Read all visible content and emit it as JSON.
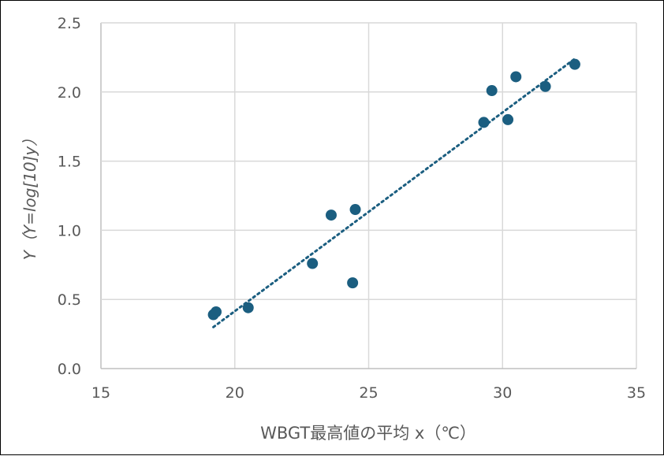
{
  "chart_data": {
    "type": "scatter",
    "xlabel": "WBGT最高値の平均 x（℃）",
    "ylabel": "Y（Y=log[10]y）",
    "xlim": [
      15,
      35
    ],
    "ylim": [
      0,
      2.5
    ],
    "x_ticks": [
      "15",
      "20",
      "25",
      "30",
      "35"
    ],
    "y_ticks": [
      "0.0",
      "0.5",
      "1.0",
      "1.5",
      "2.0",
      "2.5"
    ],
    "grid": true,
    "legend": "none",
    "series": [
      {
        "points": [
          {
            "x": 19.2,
            "y": 0.39
          },
          {
            "x": 19.3,
            "y": 0.41
          },
          {
            "x": 20.5,
            "y": 0.44
          },
          {
            "x": 22.9,
            "y": 0.76
          },
          {
            "x": 23.6,
            "y": 1.11
          },
          {
            "x": 24.4,
            "y": 0.62
          },
          {
            "x": 24.5,
            "y": 1.15
          },
          {
            "x": 29.3,
            "y": 1.78
          },
          {
            "x": 29.6,
            "y": 2.01
          },
          {
            "x": 30.2,
            "y": 1.8
          },
          {
            "x": 30.5,
            "y": 2.11
          },
          {
            "x": 31.6,
            "y": 2.04
          },
          {
            "x": 32.7,
            "y": 2.2
          }
        ],
        "color": "#1b5e80"
      }
    ],
    "trendline": {
      "kind": "linear",
      "x_range": [
        19.2,
        32.7
      ],
      "y_range": [
        0.3,
        2.24
      ],
      "style": "dotted",
      "color": "#1b5e80"
    }
  }
}
